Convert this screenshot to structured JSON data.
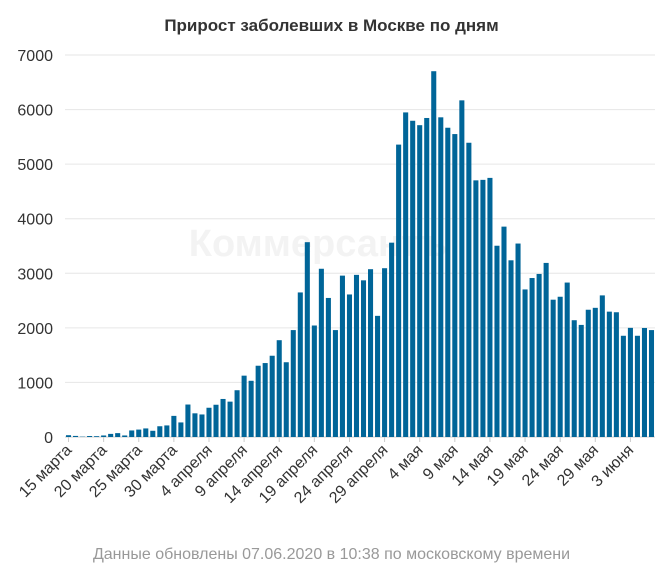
{
  "chart_data": {
    "type": "bar",
    "title": "Прирост заболевших в Москве по дням",
    "footer": "Данные обновлены 07.06.2020 в 10:38 по московскому времени",
    "watermark": "Коммерсантъ",
    "ylim": [
      0,
      7000
    ],
    "yticks": [
      "0",
      "1000",
      "2000",
      "3000",
      "4000",
      "5000",
      "6000",
      "7000"
    ],
    "xtick_labels": [
      {
        "index": 0,
        "label": "15 марта"
      },
      {
        "index": 5,
        "label": "20 марта"
      },
      {
        "index": 10,
        "label": "25 марта"
      },
      {
        "index": 15,
        "label": "30 марта"
      },
      {
        "index": 20,
        "label": "4 апреля"
      },
      {
        "index": 25,
        "label": "9 апреля"
      },
      {
        "index": 30,
        "label": "14 апреля"
      },
      {
        "index": 35,
        "label": "19 апреля"
      },
      {
        "index": 40,
        "label": "24 апреля"
      },
      {
        "index": 45,
        "label": "29 апреля"
      },
      {
        "index": 50,
        "label": "4 мая"
      },
      {
        "index": 55,
        "label": "9 мая"
      },
      {
        "index": 60,
        "label": "14 мая"
      },
      {
        "index": 65,
        "label": "19 мая"
      },
      {
        "index": 70,
        "label": "24 мая"
      },
      {
        "index": 75,
        "label": "29 мая"
      },
      {
        "index": 80,
        "label": "3 июня"
      }
    ],
    "grid": true,
    "bar_color": "#006598",
    "values": [
      33,
      20,
      6,
      18,
      15,
      28,
      57,
      71,
      28,
      120,
      136,
      157,
      114,
      197,
      212,
      387,
      267,
      595,
      434,
      413,
      536,
      591,
      697,
      648,
      857,
      1124,
      1030,
      1306,
      1355,
      1489,
      1774,
      1370,
      1959,
      2649,
      3570,
      2043,
      3083,
      2548,
      1959,
      2957,
      2612,
      2971,
      2871,
      3075,
      2220,
      3093,
      3561,
      5358,
      5948,
      5795,
      5714,
      5846,
      6703,
      5858,
      5667,
      5551,
      6169,
      5392,
      4703,
      4712,
      4748,
      3505,
      3855,
      3238,
      3545,
      2704,
      2913,
      2988,
      3190,
      2516,
      2570,
      2830,
      2140,
      2054,
      2332,
      2367,
      2595,
      2297,
      2286,
      1855,
      2000,
      1855,
      1998,
      1959
    ]
  }
}
